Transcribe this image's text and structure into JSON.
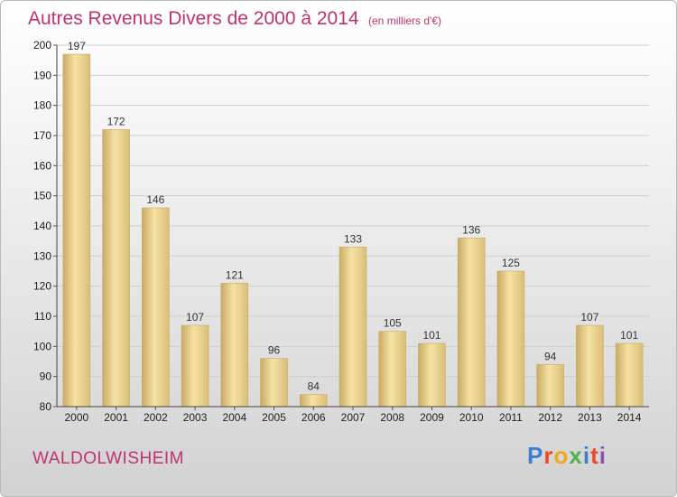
{
  "title": {
    "main": "Autres Revenus Divers de 2000 à 2014",
    "unit": "(en milliers d'€)"
  },
  "town": "WALDOLWISHEIM",
  "logo": [
    "P",
    "r",
    "o",
    "x",
    "i",
    "t",
    "i"
  ],
  "colors": {
    "title": "#c0336e",
    "bar_light": "#f7e2a4",
    "bar_dark": "#c8aa64",
    "grid": "#cfcfcf"
  },
  "chart_data": {
    "type": "bar",
    "categories": [
      "2000",
      "2001",
      "2002",
      "2003",
      "2004",
      "2005",
      "2006",
      "2007",
      "2008",
      "2009",
      "2010",
      "2011",
      "2012",
      "2013",
      "2014"
    ],
    "values": [
      197,
      172,
      146,
      107,
      121,
      96,
      84,
      133,
      105,
      101,
      136,
      125,
      94,
      107,
      101
    ],
    "ylim": [
      80,
      200
    ],
    "yticks": [
      80,
      90,
      100,
      110,
      120,
      130,
      140,
      150,
      160,
      170,
      180,
      190,
      200
    ],
    "grid": true
  }
}
